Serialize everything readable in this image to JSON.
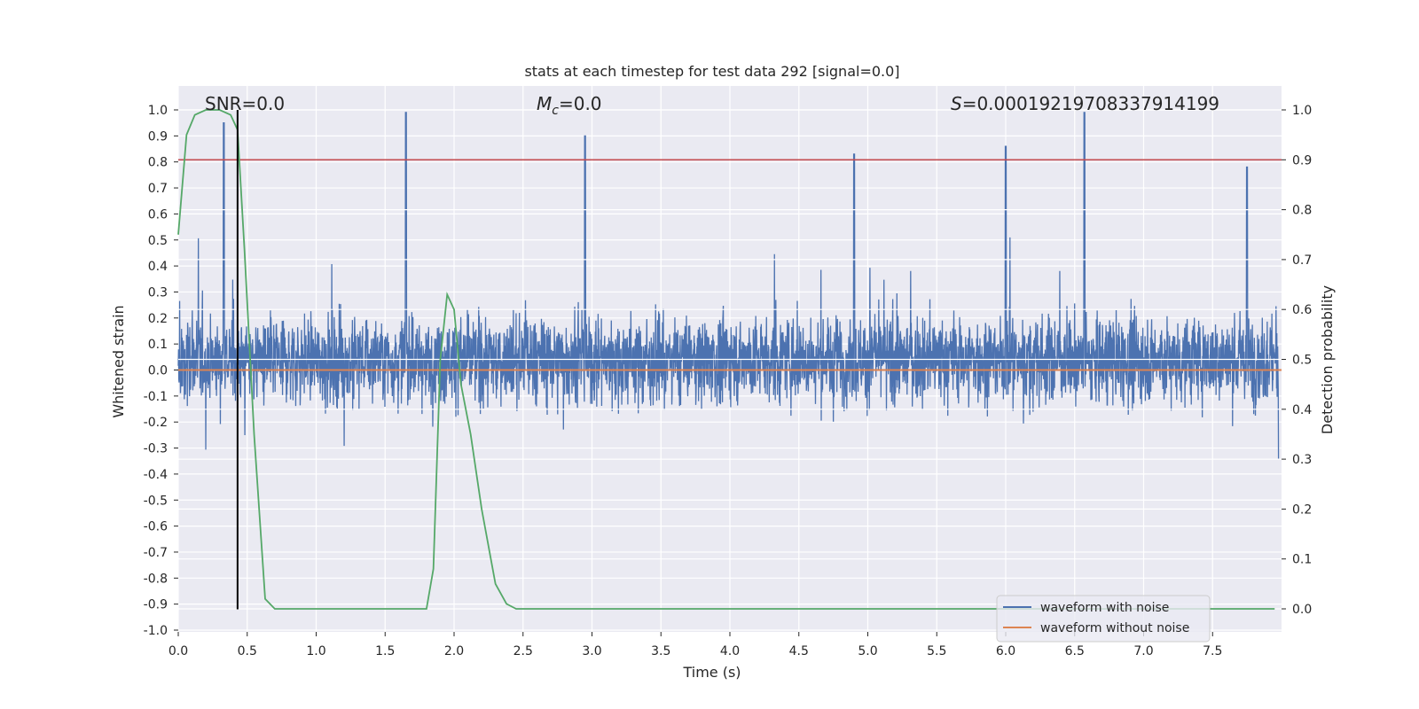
{
  "chart_data": {
    "type": "line",
    "title": "stats at each timestep for test data 292 [signal=0.0]",
    "xlabel": "Time (s)",
    "ylabel": "Whitened strain",
    "y2label": "Detection probability",
    "xlim": [
      0.0,
      8.0
    ],
    "ylim": [
      -1.0,
      1.0
    ],
    "y2lim": [
      -0.04,
      1.04
    ],
    "grid": true,
    "x_ticks": [
      "0.0",
      "0.5",
      "1.0",
      "1.5",
      "2.0",
      "2.5",
      "3.0",
      "3.5",
      "4.0",
      "4.5",
      "5.0",
      "5.5",
      "6.0",
      "6.5",
      "7.0",
      "7.5"
    ],
    "y_ticks": [
      "1.0",
      "0.9",
      "0.8",
      "0.7",
      "0.6",
      "0.5",
      "0.4",
      "0.3",
      "0.2",
      "0.1",
      "0.0",
      "-0.1",
      "-0.2",
      "-0.3",
      "-0.4",
      "-0.5",
      "-0.6",
      "-0.7",
      "-0.8",
      "-0.9",
      "-1.0"
    ],
    "y2_ticks": [
      "1.0",
      "0.9",
      "0.8",
      "0.7",
      "0.6",
      "0.5",
      "0.4",
      "0.3",
      "0.2",
      "0.1",
      "0.0"
    ],
    "annotations": {
      "snr": "SNR=0.0",
      "mc_symbol": "M",
      "mc_sub": "c",
      "mc_value": "=0.0",
      "s_symbol": "S",
      "s_value": "=0.000192197083379141​99"
    },
    "series": [
      {
        "name": "waveform with noise",
        "color": "#4c72b0",
        "note_peaks": {
          "x": [
            0.33,
            1.65,
            2.95,
            4.9,
            6.0,
            6.57,
            7.75
          ],
          "y": [
            0.95,
            0.99,
            0.9,
            0.83,
            0.86,
            0.99,
            0.78
          ]
        }
      },
      {
        "name": "waveform without noise",
        "color": "#dd8452",
        "x": [
          0.0,
          8.0
        ],
        "y": [
          0.0,
          0.0
        ]
      },
      {
        "name": "detection probability",
        "color": "#55a868",
        "axis": "right",
        "x": [
          0.0,
          0.06,
          0.12,
          0.2,
          0.3,
          0.38,
          0.43,
          0.48,
          0.55,
          0.63,
          0.7,
          0.75,
          0.9,
          1.2,
          1.5,
          1.75,
          1.8,
          1.85,
          1.9,
          1.95,
          2.0,
          2.05,
          2.12,
          2.2,
          2.3,
          2.38,
          2.45,
          3.0,
          4.0,
          5.0,
          6.0,
          7.0,
          7.95
        ],
        "y": [
          0.75,
          0.95,
          0.99,
          1.0,
          1.0,
          0.99,
          0.96,
          0.72,
          0.35,
          0.02,
          0.0,
          0.0,
          0.0,
          0.0,
          0.0,
          0.0,
          0.0,
          0.08,
          0.5,
          0.63,
          0.6,
          0.45,
          0.35,
          0.2,
          0.05,
          0.01,
          0.0,
          0.0,
          0.0,
          0.0,
          0.0,
          0.0,
          0.0
        ]
      }
    ],
    "vertical_line": {
      "x": 0.43,
      "y_from": -0.92,
      "y_to": 1.0,
      "color": "#000000"
    },
    "threshold_line": {
      "y2": 0.9,
      "color": "#c44e52"
    },
    "legend": {
      "placement": "lower-right",
      "entries": [
        "waveform with noise",
        "waveform without noise"
      ]
    },
    "colors": {
      "plot_bg": "#eaeaf2",
      "grid": "#ffffff"
    }
  }
}
